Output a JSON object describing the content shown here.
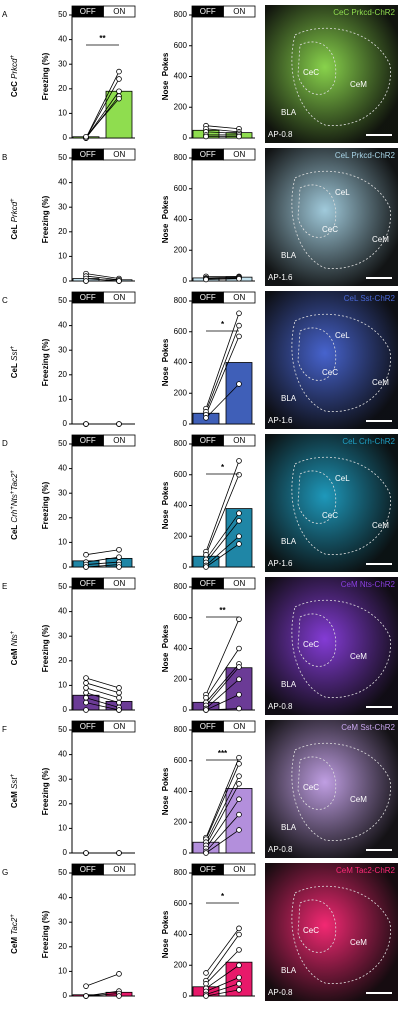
{
  "chart_data": [
    {
      "type": "bar",
      "ylabel": "Freezing (%)",
      "categories": [
        "OFF",
        "ON"
      ],
      "values": [
        0.5,
        19
      ],
      "color": "#8fdd4f",
      "ylim": [
        0,
        50
      ],
      "yticks": [
        0,
        10,
        20,
        30,
        40,
        50
      ],
      "significance": "**",
      "subjects": [
        [
          0,
          27
        ],
        [
          0,
          24
        ],
        [
          0,
          19
        ],
        [
          0,
          17
        ],
        [
          0.5,
          16
        ]
      ]
    },
    {
      "type": "bar",
      "ylabel": "Nose  Pokes",
      "categories": [
        "OFF",
        "ON"
      ],
      "values": [
        50,
        35
      ],
      "color": "#8fdd4f",
      "ylim": [
        0,
        800
      ],
      "yticks": [
        0,
        200,
        400,
        600,
        800
      ],
      "subjects": [
        [
          80,
          60
        ],
        [
          60,
          40
        ],
        [
          40,
          30
        ],
        [
          20,
          20
        ],
        [
          10,
          10
        ]
      ]
    },
    {
      "type": "bar",
      "ylabel": "Freezing (%)",
      "categories": [
        "OFF",
        "ON"
      ],
      "values": [
        1,
        0.5
      ],
      "color": "#c5e3ef",
      "ylim": [
        0,
        50
      ],
      "yticks": [
        0,
        10,
        20,
        30,
        40,
        50
      ],
      "subjects": [
        [
          3,
          1
        ],
        [
          2,
          0.5
        ],
        [
          1,
          0
        ],
        [
          0,
          0
        ],
        [
          0,
          0
        ]
      ]
    },
    {
      "type": "bar",
      "ylabel": "Nose  Pokes",
      "categories": [
        "OFF",
        "ON"
      ],
      "values": [
        20,
        25
      ],
      "color": "#c5e3ef",
      "ylim": [
        0,
        800
      ],
      "yticks": [
        0,
        200,
        400,
        600,
        800
      ],
      "subjects": [
        [
          30,
          30
        ],
        [
          20,
          25
        ],
        [
          15,
          20
        ],
        [
          10,
          15
        ]
      ]
    },
    {
      "type": "bar",
      "ylabel": "Freezing (%)",
      "categories": [
        "OFF",
        "ON"
      ],
      "values": [
        0,
        0
      ],
      "color": "#3f5fb8",
      "ylim": [
        0,
        50
      ],
      "yticks": [
        0,
        10,
        20,
        30,
        40,
        50
      ],
      "subjects": [
        [
          0,
          0
        ],
        [
          0,
          0
        ],
        [
          0,
          0
        ]
      ]
    },
    {
      "type": "bar",
      "ylabel": "Nose  Pokes",
      "categories": [
        "OFF",
        "ON"
      ],
      "values": [
        70,
        400
      ],
      "color": "#3f5fb8",
      "ylim": [
        0,
        800
      ],
      "yticks": [
        0,
        200,
        400,
        600,
        800
      ],
      "significance": "*",
      "subjects": [
        [
          100,
          720
        ],
        [
          80,
          640
        ],
        [
          60,
          570
        ],
        [
          40,
          260
        ]
      ]
    },
    {
      "type": "bar",
      "ylabel": "Freezing (%)",
      "categories": [
        "OFF",
        "ON"
      ],
      "values": [
        2.5,
        3.5
      ],
      "color": "#1f86a6",
      "ylim": [
        0,
        50
      ],
      "yticks": [
        0,
        10,
        20,
        30,
        40,
        50
      ],
      "subjects": [
        [
          5,
          7
        ],
        [
          2,
          4
        ],
        [
          1,
          2
        ],
        [
          0,
          1
        ],
        [
          0,
          0
        ]
      ]
    },
    {
      "type": "bar",
      "ylabel": "Nose  Pokes",
      "categories": [
        "OFF",
        "ON"
      ],
      "values": [
        70,
        380
      ],
      "color": "#1f86a6",
      "ylim": [
        0,
        800
      ],
      "yticks": [
        0,
        200,
        400,
        600,
        800
      ],
      "significance": "*",
      "subjects": [
        [
          100,
          690
        ],
        [
          80,
          600
        ],
        [
          50,
          350
        ],
        [
          30,
          300
        ],
        [
          10,
          200
        ],
        [
          0,
          150
        ]
      ]
    },
    {
      "type": "bar",
      "ylabel": "Freezing (%)",
      "categories": [
        "OFF",
        "ON"
      ],
      "values": [
        6,
        3.5
      ],
      "color": "#6b3b96",
      "ylim": [
        0,
        50
      ],
      "yticks": [
        0,
        10,
        20,
        30,
        40,
        50
      ],
      "subjects": [
        [
          13,
          9
        ],
        [
          11,
          7
        ],
        [
          9,
          5
        ],
        [
          7,
          3
        ],
        [
          5,
          1
        ],
        [
          3,
          0
        ],
        [
          0,
          0
        ]
      ]
    },
    {
      "type": "bar",
      "ylabel": "Nose  Pokes",
      "categories": [
        "OFF",
        "ON"
      ],
      "values": [
        50,
        275
      ],
      "color": "#6b3b96",
      "ylim": [
        0,
        800
      ],
      "yticks": [
        0,
        200,
        400,
        600,
        800
      ],
      "significance": "**",
      "subjects": [
        [
          100,
          590
        ],
        [
          80,
          400
        ],
        [
          50,
          300
        ],
        [
          30,
          280
        ],
        [
          10,
          200
        ],
        [
          0,
          100
        ],
        [
          0,
          10
        ]
      ]
    },
    {
      "type": "bar",
      "ylabel": "Freezing (%)",
      "categories": [
        "OFF",
        "ON"
      ],
      "values": [
        0,
        0
      ],
      "color": "#b38fdc",
      "ylim": [
        0,
        50
      ],
      "yticks": [
        0,
        10,
        20,
        30,
        40,
        50
      ],
      "subjects": [
        [
          0,
          0
        ],
        [
          0,
          0
        ],
        [
          0,
          0
        ]
      ]
    },
    {
      "type": "bar",
      "ylabel": "Nose  Pokes",
      "categories": [
        "OFF",
        "ON"
      ],
      "values": [
        70,
        420
      ],
      "color": "#b38fdc",
      "ylim": [
        0,
        800
      ],
      "yticks": [
        0,
        200,
        400,
        600,
        800
      ],
      "significance": "***",
      "subjects": [
        [
          100,
          620
        ],
        [
          90,
          580
        ],
        [
          70,
          500
        ],
        [
          50,
          450
        ],
        [
          30,
          350
        ],
        [
          10,
          250
        ],
        [
          0,
          150
        ]
      ]
    },
    {
      "type": "bar",
      "ylabel": "Freezing (%)",
      "categories": [
        "OFF",
        "ON"
      ],
      "values": [
        0.5,
        1.5
      ],
      "color": "#e8196a",
      "ylim": [
        0,
        50
      ],
      "yticks": [
        0,
        10,
        20,
        30,
        40,
        50
      ],
      "subjects": [
        [
          4,
          9
        ],
        [
          0,
          2
        ],
        [
          0,
          1
        ],
        [
          0,
          0
        ]
      ]
    },
    {
      "type": "bar",
      "ylabel": "Nose  Pokes",
      "categories": [
        "OFF",
        "ON"
      ],
      "values": [
        60,
        220
      ],
      "color": "#e8196a",
      "ylim": [
        0,
        800
      ],
      "yticks": [
        0,
        200,
        400,
        600,
        800
      ],
      "significance": "*",
      "subjects": [
        [
          150,
          440
        ],
        [
          100,
          400
        ],
        [
          80,
          300
        ],
        [
          50,
          200
        ],
        [
          30,
          120
        ],
        [
          10,
          80
        ],
        [
          0,
          40
        ]
      ]
    }
  ],
  "panels": [
    {
      "letter": "A",
      "region": "CeC",
      "genes": [
        {
          "name": "Prkcd",
          "sup": "+"
        }
      ],
      "image": {
        "title": "CeC Prkcd-ChR2",
        "color": "#8fdd4f",
        "labels": [
          "CeC",
          "CeM",
          "BLA"
        ],
        "ap": "AP-0.8"
      }
    },
    {
      "letter": "B",
      "region": "CeL",
      "genes": [
        {
          "name": "Prkcd",
          "sup": "+"
        }
      ],
      "image": {
        "title": "CeL Prkcd-ChR2",
        "color": "#a8d4e6",
        "labels": [
          "CeL",
          "CeC",
          "CeM",
          "BLA"
        ],
        "ap": "AP-1.6"
      }
    },
    {
      "letter": "C",
      "region": "CeL",
      "genes": [
        {
          "name": "Sst",
          "sup": "+"
        }
      ],
      "image": {
        "title": "CeL Sst-ChR2",
        "color": "#4a68d8",
        "labels": [
          "CeL",
          "CeC",
          "CeM",
          "BLA"
        ],
        "ap": "AP-1.6"
      }
    },
    {
      "letter": "D",
      "region": "CeL",
      "genes": [
        {
          "name": "Crh",
          "sup": "+"
        },
        {
          "name": "Nts",
          "sup": "+"
        },
        {
          "name": "Tac2",
          "sup": "+"
        }
      ],
      "image": {
        "title": "CeL Crh-ChR2",
        "color": "#1fa0c4",
        "labels": [
          "CeL",
          "CeC",
          "CeM",
          "BLA"
        ],
        "ap": "AP-1.6"
      }
    },
    {
      "letter": "E",
      "region": "CeM",
      "genes": [
        {
          "name": "Nts",
          "sup": "+"
        }
      ],
      "image": {
        "title": "CeM Nts-ChR2",
        "color": "#8a3ee0",
        "labels": [
          "CeC",
          "CeM",
          "BLA"
        ],
        "ap": "AP-0.8"
      }
    },
    {
      "letter": "F",
      "region": "CeM",
      "genes": [
        {
          "name": "Sst",
          "sup": "+"
        }
      ],
      "image": {
        "title": "CeM Sst-ChR2",
        "color": "#c9a6ee",
        "labels": [
          "CeC",
          "CeM",
          "BLA"
        ],
        "ap": "AP-0.8"
      }
    },
    {
      "letter": "G",
      "region": "CeM",
      "genes": [
        {
          "name": "Tac2",
          "sup": "+"
        }
      ],
      "image": {
        "title": "CeM Tac2-ChR2",
        "color": "#ff2a78",
        "labels": [
          "CeC",
          "CeM",
          "BLA"
        ],
        "ap": "AP-0.8"
      }
    }
  ]
}
